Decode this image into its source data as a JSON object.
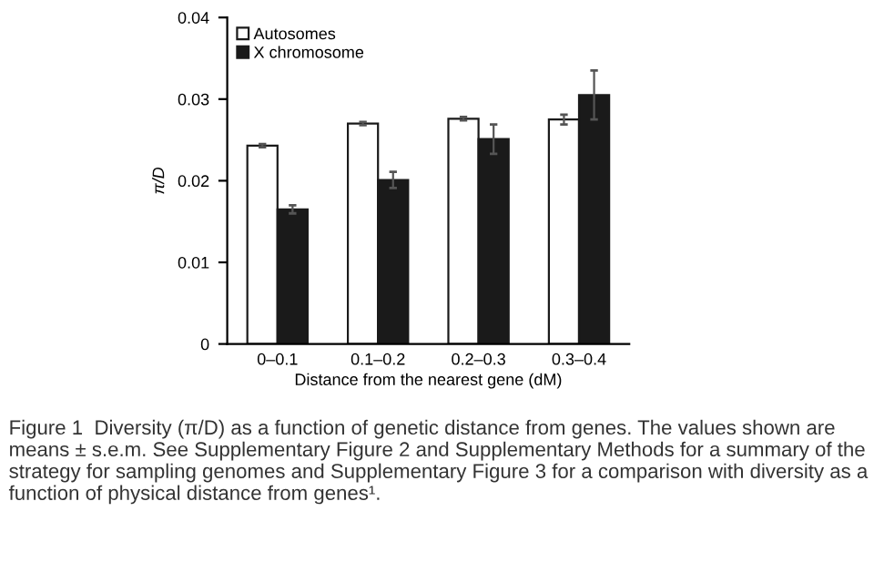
{
  "chart_data": {
    "type": "bar",
    "xlabel": "Distance from the nearest gene (dM)",
    "ylabel": "π/D",
    "categories": [
      "0–0.1",
      "0.1–0.2",
      "0.2–0.3",
      "0.3–0.4"
    ],
    "series": [
      {
        "name": "Autosomes",
        "color": "#ffffff",
        "values": [
          0.0243,
          0.027,
          0.0276,
          0.0275
        ],
        "errors": [
          0.0002,
          0.0002,
          0.0002,
          0.0006
        ]
      },
      {
        "name": "X chromosome",
        "color": "#1a1a1a",
        "values": [
          0.0165,
          0.0201,
          0.0251,
          0.0305
        ],
        "errors": [
          0.0005,
          0.001,
          0.0018,
          0.003
        ]
      }
    ],
    "ylim": [
      0,
      0.04
    ],
    "yticks": [
      0,
      0.01,
      0.02,
      0.03,
      0.04
    ],
    "grid": false,
    "legend": "top left",
    "annotations": [
      "Figure 1  Diversity (π/D) as a function of genetic distance from genes. The values shown are means ± s.e.m. See Supplementary Figure 2 and Supplementary Methods for a summary of the strategy for sampling genomes and Supplementary Figure 3 for a comparison with diversity as a function of physical distance from genes¹."
    ]
  }
}
